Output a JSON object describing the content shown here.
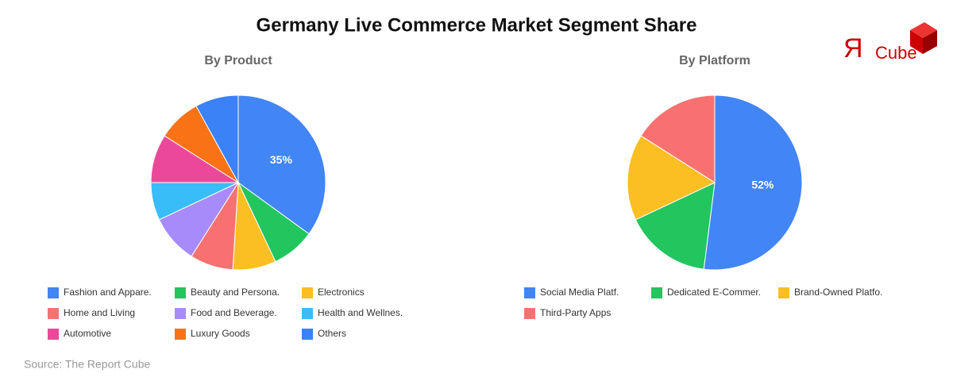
{
  "title": "Germany Live Commerce Market Segment Share",
  "source": "Source: The Report Cube",
  "logo": {
    "mark": "Я",
    "text": "Cube"
  },
  "chart_data": [
    {
      "type": "pie",
      "title": "By Product",
      "categories": [
        "Fashion and Appare.",
        "Beauty and Persona.",
        "Electronics",
        "Home and Living",
        "Food and Beverage.",
        "Health and Wellnes.",
        "Automotive",
        "Luxury Goods",
        "Others"
      ],
      "values": [
        35,
        8,
        8,
        8,
        9,
        7,
        9,
        8,
        8
      ],
      "value_labels": [
        "35%",
        null,
        null,
        null,
        null,
        null,
        null,
        null,
        null
      ],
      "colors": [
        "#4285f4",
        "#22c55e",
        "#fbbf24",
        "#f87171",
        "#a78bfa",
        "#38bdf8",
        "#ec4899",
        "#f97316",
        "#3b82f6"
      ]
    },
    {
      "type": "pie",
      "title": "By Platform",
      "categories": [
        "Social Media Platf.",
        "Dedicated E-Commer.",
        "Brand-Owned Platfo.",
        "Third-Party Apps"
      ],
      "values": [
        52,
        16,
        16,
        16
      ],
      "value_labels": [
        "52%",
        null,
        null,
        null
      ],
      "colors": [
        "#4285f4",
        "#22c55e",
        "#fbbf24",
        "#f87171"
      ]
    }
  ]
}
